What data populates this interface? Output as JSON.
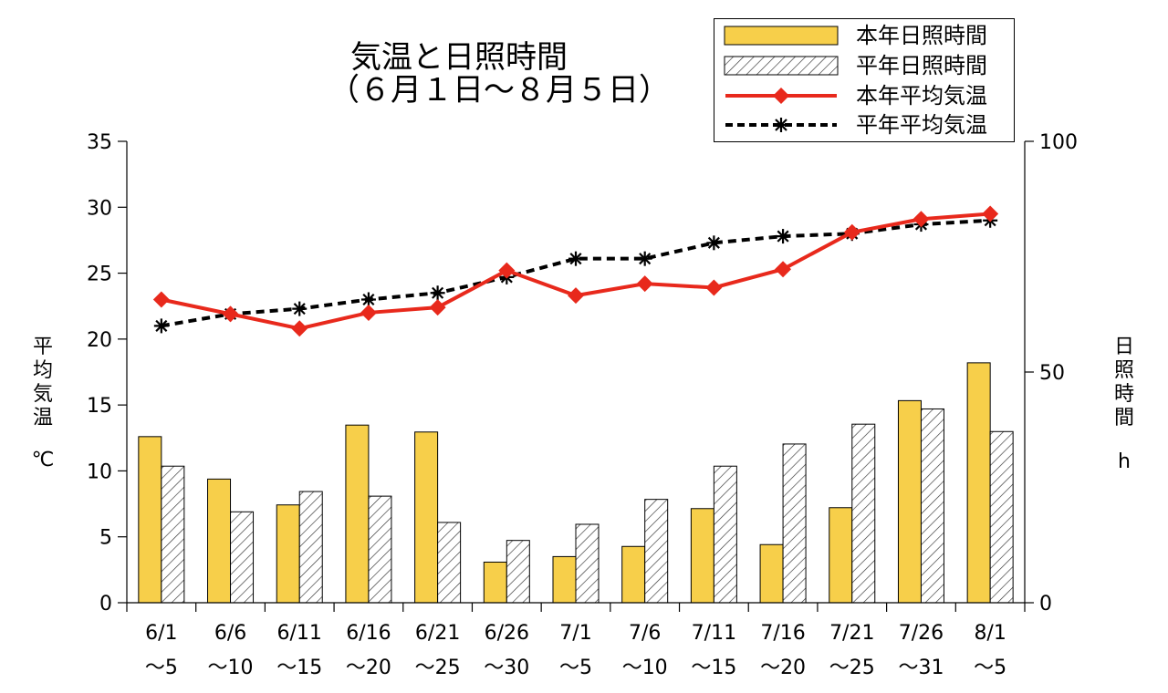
{
  "chart_data": {
    "type": "bar",
    "title": [
      "気温と日照時間",
      "（６月１日～８月５日）"
    ],
    "categories": [
      [
        "6/1",
        "～5"
      ],
      [
        "6/6",
        "～10"
      ],
      [
        "6/11",
        "～15"
      ],
      [
        "6/16",
        "～20"
      ],
      [
        "6/21",
        "～25"
      ],
      [
        "6/26",
        "～30"
      ],
      [
        "7/1",
        "～5"
      ],
      [
        "7/6",
        "～10"
      ],
      [
        "7/11",
        "～15"
      ],
      [
        "7/16",
        "～20"
      ],
      [
        "7/21",
        "～25"
      ],
      [
        "7/26",
        "～31"
      ],
      [
        "8/1",
        "～5"
      ]
    ],
    "left_axis": {
      "label": [
        "平",
        "均",
        "気",
        "温"
      ],
      "unit": "℃",
      "ylim": [
        0,
        35
      ],
      "ticks": [
        "0",
        "5",
        "10",
        "15",
        "20",
        "25",
        "30",
        "35"
      ]
    },
    "right_axis": {
      "label": [
        "日",
        "照",
        "時",
        "間"
      ],
      "unit": "h",
      "ylim": [
        0,
        100
      ],
      "ticks": [
        "0",
        "50",
        "100"
      ]
    },
    "series": [
      {
        "name": "本年日照時間",
        "kind": "bar",
        "axis": "right",
        "color": "#f7cf4a",
        "values": [
          36,
          26.8,
          21.2,
          38.5,
          37,
          8.8,
          10,
          12.2,
          20.4,
          12.6,
          20.6,
          43.8,
          52
        ]
      },
      {
        "name": "平年日照時間",
        "kind": "bar-hatched",
        "axis": "right",
        "color": "#333333",
        "values": [
          29.6,
          19.7,
          24.1,
          23.1,
          17.4,
          13.5,
          17,
          22.4,
          29.6,
          34.4,
          38.7,
          42,
          37.1
        ]
      },
      {
        "name": "本年平均気温",
        "kind": "line-diamond",
        "axis": "left",
        "color": "#e8291c",
        "values": [
          23.0,
          21.9,
          20.8,
          22.0,
          22.4,
          25.2,
          23.3,
          24.2,
          23.9,
          25.3,
          28.1,
          29.1,
          29.5
        ]
      },
      {
        "name": "平年平均気温",
        "kind": "line-dashed-star",
        "axis": "left",
        "color": "#000000",
        "values": [
          21.0,
          21.9,
          22.3,
          23.0,
          23.5,
          24.7,
          26.1,
          26.1,
          27.3,
          27.8,
          28.0,
          28.7,
          29.0
        ]
      }
    ],
    "grid": false,
    "legend_position": "top-right"
  }
}
